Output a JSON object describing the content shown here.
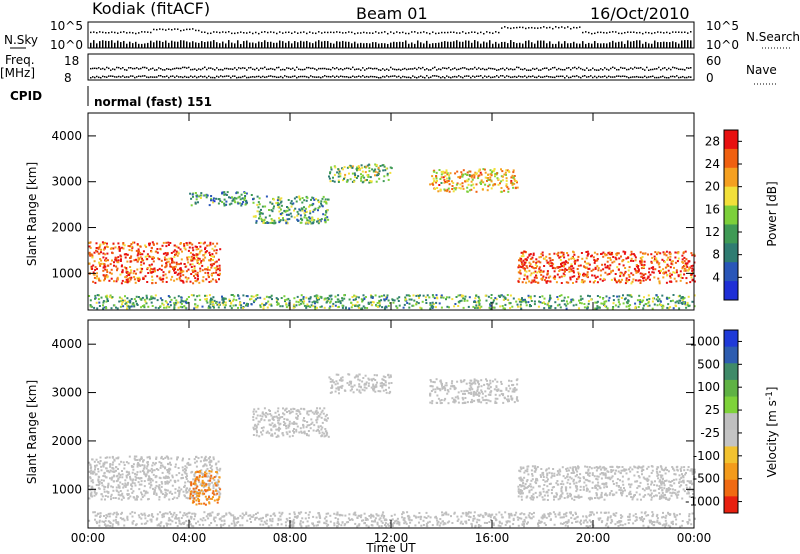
{
  "header": {
    "title": "Kodiak (fitACF)",
    "beam": "Beam 01",
    "date": "16/Oct/2010"
  },
  "status_panels": {
    "nsky_label": "N.Sky",
    "nsearch_label": "N.Search",
    "noise_ticks_left": [
      "10^5",
      "10^0"
    ],
    "noise_ticks_right": [
      "10^5",
      "10^0"
    ],
    "freq_label_1": "Freq.",
    "freq_label_2": "[MHz]",
    "freq_ticks": [
      "18",
      "8"
    ],
    "nave_label": "Nave",
    "nave_ticks": [
      "60",
      "0"
    ],
    "cpid_label": "CPID",
    "cpid_value": "normal (fast) 151"
  },
  "colors": {
    "power_scale": [
      "#1f2fd6",
      "#2a56b8",
      "#2f7c72",
      "#3f9a55",
      "#7ccf3a",
      "#f2e03a",
      "#f5a020",
      "#f06010",
      "#e81010"
    ],
    "velocity_scale": [
      "#1f3ad8",
      "#2e5db0",
      "#3f8a68",
      "#5fb244",
      "#7ed23a",
      "#bfbfbf",
      "#c4c4c4",
      "#f2c230",
      "#f39b1c",
      "#f06a12",
      "#e82010"
    ]
  },
  "chart_data": [
    {
      "type": "heatmap",
      "title": "Beam 01",
      "xlabel": "Time UT",
      "ylabel": "Slant Range [km]",
      "x_ticks": [
        "00:00",
        "04:00",
        "08:00",
        "12:00",
        "16:00",
        "20:00",
        "00:00"
      ],
      "xlim": [
        0,
        24
      ],
      "y_ticks": [
        "1000",
        "2000",
        "3000",
        "4000"
      ],
      "ylim": [
        200,
        4500
      ],
      "colorbar": {
        "label": "Power [dB]",
        "ticks": [
          "4",
          "8",
          "12",
          "16",
          "20",
          "24",
          "28"
        ],
        "range": [
          0,
          30
        ]
      },
      "echo_bands": [
        {
          "t": [
            0,
            5.2
          ],
          "r": [
            800,
            1700
          ],
          "value": 26
        },
        {
          "t": [
            4.0,
            6.5
          ],
          "r": [
            2500,
            2800
          ],
          "value": 10
        },
        {
          "t": [
            6.5,
            9.5
          ],
          "r": [
            2100,
            2700
          ],
          "value": 12
        },
        {
          "t": [
            9.5,
            12
          ],
          "r": [
            3000,
            3400
          ],
          "value": 14
        },
        {
          "t": [
            13.5,
            17
          ],
          "r": [
            2800,
            3300
          ],
          "value": 20
        },
        {
          "t": [
            17,
            24
          ],
          "r": [
            800,
            1500
          ],
          "value": 26
        },
        {
          "t": [
            0,
            24
          ],
          "r": [
            250,
            550
          ],
          "value": 12
        }
      ]
    },
    {
      "type": "heatmap",
      "xlabel": "Time UT",
      "ylabel": "Slant Range [km]",
      "x_ticks": [
        "00:00",
        "04:00",
        "08:00",
        "12:00",
        "16:00",
        "20:00",
        "00:00"
      ],
      "xlim": [
        0,
        24
      ],
      "y_ticks": [
        "1000",
        "2000",
        "3000",
        "4000"
      ],
      "ylim": [
        200,
        4500
      ],
      "colorbar": {
        "label": "Velocity [m s⁻¹]",
        "label_main": "Velocity [m s",
        "label_exp": "-1",
        "label_end": "]",
        "ticks": [
          "1000",
          "500",
          "100",
          "25",
          "-25",
          "-100",
          "-500",
          "-1000"
        ],
        "range": [
          -1000,
          1000
        ]
      },
      "echo_bands": [
        {
          "t": [
            0,
            5.2
          ],
          "r": [
            800,
            1700
          ],
          "value": 0
        },
        {
          "t": [
            4.0,
            5.2
          ],
          "r": [
            700,
            1400
          ],
          "value": -500
        },
        {
          "t": [
            6.5,
            9.5
          ],
          "r": [
            2100,
            2700
          ],
          "value": 0
        },
        {
          "t": [
            9.5,
            12
          ],
          "r": [
            3000,
            3400
          ],
          "value": 0
        },
        {
          "t": [
            13.5,
            17
          ],
          "r": [
            2800,
            3300
          ],
          "value": 0
        },
        {
          "t": [
            17,
            24
          ],
          "r": [
            800,
            1500
          ],
          "value": 0
        },
        {
          "t": [
            0,
            24
          ],
          "r": [
            250,
            550
          ],
          "value": 0
        }
      ]
    }
  ]
}
